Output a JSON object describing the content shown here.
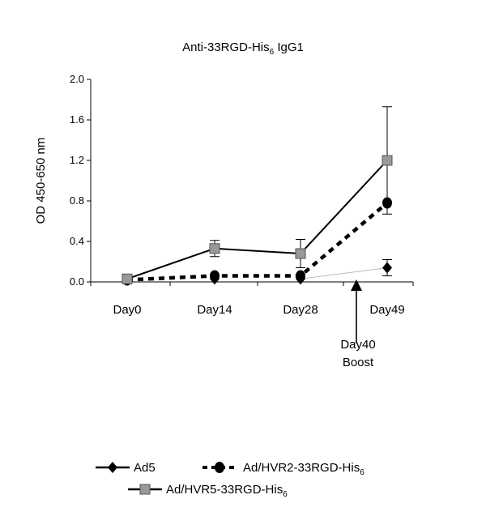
{
  "chart_data": {
    "type": "line",
    "title_main": "Anti-33RGD-His",
    "title_sub": "6",
    "title_tail": " IgG1",
    "ylabel": "OD 450-650 nm",
    "xlabel": "",
    "ylim": [
      0,
      2.0
    ],
    "yticks": [
      "0.0",
      "0.4",
      "0.8",
      "1.2",
      "1.6",
      "2.0"
    ],
    "ytick_values": [
      0,
      0.4,
      0.8,
      1.2,
      1.6,
      2.0
    ],
    "categories": [
      "Day0",
      "Day14",
      "Day28",
      "Day49"
    ],
    "grid": false,
    "series": [
      {
        "name": "Ad5",
        "marker": "diamond",
        "line": "none",
        "values": [
          0.02,
          0.03,
          0.03,
          0.14
        ],
        "errors": [
          null,
          null,
          null,
          0.08
        ]
      },
      {
        "name_main": "Ad/HVR2-33RGD-His",
        "name_sub": "6",
        "marker": "circle",
        "line": "dashed",
        "values": [
          0.02,
          0.06,
          0.06,
          0.78
        ],
        "errors": [
          null,
          null,
          null,
          null
        ]
      },
      {
        "name_main": "Ad/HVR5-33RGD-His",
        "name_sub": "6",
        "marker": "square",
        "line": "solid",
        "values": [
          0.03,
          0.33,
          0.28,
          1.2
        ],
        "errors": [
          null,
          0.08,
          0.14,
          0.53
        ]
      }
    ],
    "annotation": {
      "line1": "Day40",
      "line2": "Boost",
      "arrow": "up"
    },
    "legend_placement": "bottom"
  },
  "colors": {
    "square_fill": "#999999",
    "line": "#000000",
    "faint_line": "#bbbbbb"
  }
}
